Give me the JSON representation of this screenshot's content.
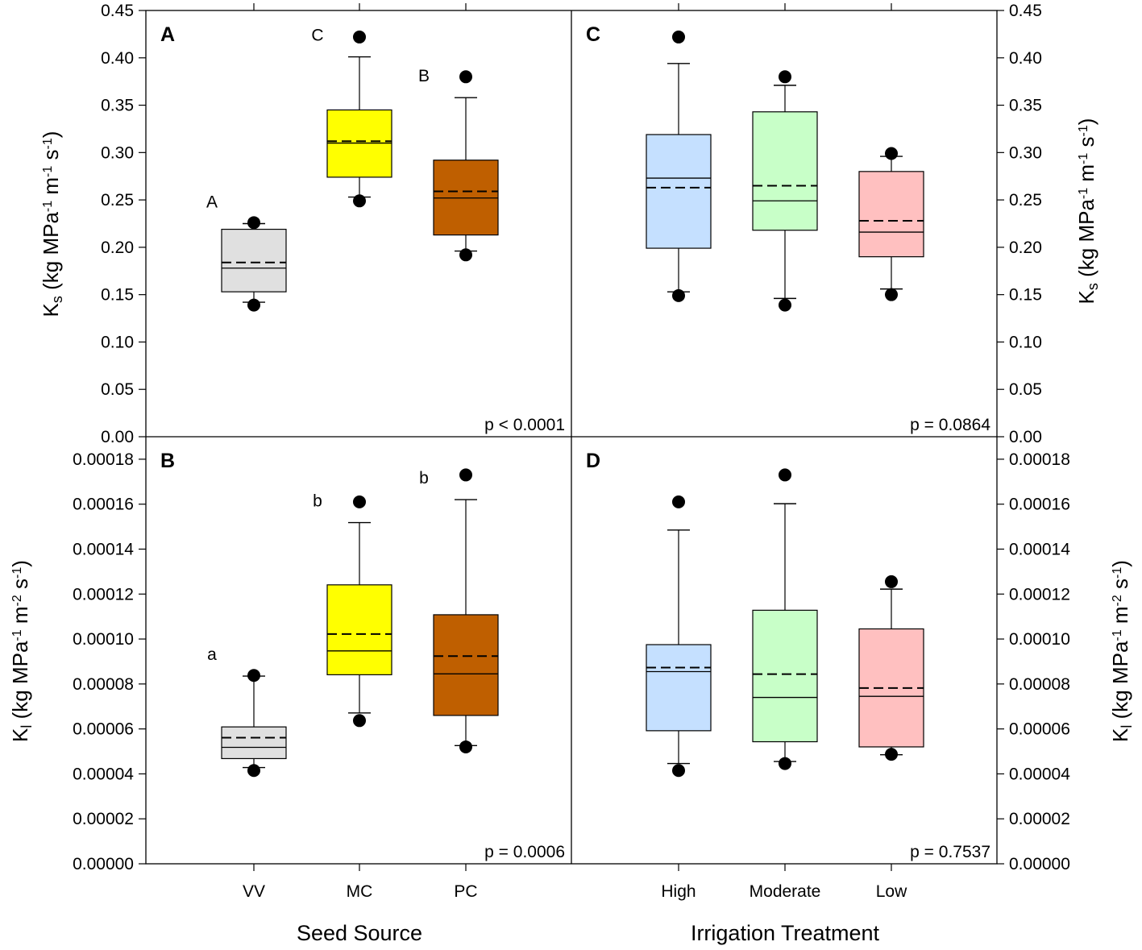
{
  "chart_data": [
    {
      "panel": "A",
      "type": "box",
      "metric": "Ks",
      "ylim": [
        0,
        0.45
      ],
      "yticks": [
        "0.00",
        "0.05",
        "0.10",
        "0.15",
        "0.20",
        "0.25",
        "0.30",
        "0.35",
        "0.40",
        "0.45"
      ],
      "p_value": "p < 0.0001",
      "groups": [
        {
          "name": "VV",
          "color": "#e0e0e0",
          "q1": 0.153,
          "median": 0.178,
          "mean": 0.184,
          "q3": 0.219,
          "wlo": 0.142,
          "whi": 0.225,
          "outliers": [
            0.139,
            0.226
          ],
          "sig": "A"
        },
        {
          "name": "MC",
          "color": "#ffff00",
          "q1": 0.274,
          "median": 0.31,
          "mean": 0.312,
          "q3": 0.345,
          "wlo": 0.253,
          "whi": 0.401,
          "outliers": [
            0.249,
            0.422
          ],
          "sig": "C"
        },
        {
          "name": "PC",
          "color": "#bf5f00",
          "q1": 0.213,
          "median": 0.252,
          "mean": 0.259,
          "q3": 0.292,
          "wlo": 0.196,
          "whi": 0.358,
          "outliers": [
            0.192,
            0.38
          ],
          "sig": "B"
        }
      ]
    },
    {
      "panel": "C",
      "type": "box",
      "metric": "Ks",
      "ylim": [
        0,
        0.45
      ],
      "yticks": [
        "0.00",
        "0.05",
        "0.10",
        "0.15",
        "0.20",
        "0.25",
        "0.30",
        "0.35",
        "0.40",
        "0.45"
      ],
      "p_value": "p = 0.0864",
      "groups": [
        {
          "name": "High",
          "color": "#c5e0ff",
          "q1": 0.199,
          "median": 0.273,
          "mean": 0.263,
          "q3": 0.319,
          "wlo": 0.153,
          "whi": 0.394,
          "outliers": [
            0.149,
            0.422
          ],
          "sig": ""
        },
        {
          "name": "Moderate",
          "color": "#c8ffc8",
          "q1": 0.218,
          "median": 0.249,
          "mean": 0.265,
          "q3": 0.343,
          "wlo": 0.146,
          "whi": 0.371,
          "outliers": [
            0.139,
            0.38
          ],
          "sig": ""
        },
        {
          "name": "Low",
          "color": "#ffc0c0",
          "q1": 0.19,
          "median": 0.216,
          "mean": 0.228,
          "q3": 0.28,
          "wlo": 0.156,
          "whi": 0.296,
          "outliers": [
            0.15,
            0.299
          ],
          "sig": ""
        }
      ]
    },
    {
      "panel": "B",
      "type": "box",
      "metric": "Kl",
      "ylim": [
        0,
        0.00019
      ],
      "yticks": [
        "0.00000",
        "0.00002",
        "0.00004",
        "0.00006",
        "0.00008",
        "0.00010",
        "0.00012",
        "0.00014",
        "0.00016",
        "0.00018"
      ],
      "p_value": "p = 0.0006",
      "groups": [
        {
          "name": "VV",
          "color": "#e0e0e0",
          "q1": 4.68e-05,
          "median": 5.18e-05,
          "mean": 5.61e-05,
          "q3": 6.09e-05,
          "wlo": 4.28e-05,
          "whi": 8.35e-05,
          "outliers": [
            4.15e-05,
            8.38e-05
          ],
          "sig": "a"
        },
        {
          "name": "MC",
          "color": "#ffff00",
          "q1": 8.41e-05,
          "median": 9.47e-05,
          "mean": 0.0001022,
          "q3": 0.0001241,
          "wlo": 6.71e-05,
          "whi": 0.0001518,
          "outliers": [
            6.37e-05,
            0.000161
          ],
          "sig": "b"
        },
        {
          "name": "PC",
          "color": "#bf5f00",
          "q1": 6.6e-05,
          "median": 8.45e-05,
          "mean": 9.24e-05,
          "q3": 0.0001108,
          "wlo": 5.26e-05,
          "whi": 0.000162,
          "outliers": [
            5.2e-05,
            0.000173
          ],
          "sig": "b"
        }
      ]
    },
    {
      "panel": "D",
      "type": "box",
      "metric": "Kl",
      "ylim": [
        0,
        0.00019
      ],
      "yticks": [
        "0.00000",
        "0.00002",
        "0.00004",
        "0.00006",
        "0.00008",
        "0.00010",
        "0.00012",
        "0.00014",
        "0.00016",
        "0.00018"
      ],
      "p_value": "p = 0.7537",
      "groups": [
        {
          "name": "High",
          "color": "#c5e0ff",
          "q1": 5.92e-05,
          "median": 8.55e-05,
          "mean": 8.73e-05,
          "q3": 9.75e-05,
          "wlo": 4.46e-05,
          "whi": 0.0001485,
          "outliers": [
            4.15e-05,
            0.000161
          ],
          "sig": ""
        },
        {
          "name": "Moderate",
          "color": "#c8ffc8",
          "q1": 5.43e-05,
          "median": 7.4e-05,
          "mean": 8.44e-05,
          "q3": 0.0001128,
          "wlo": 4.55e-05,
          "whi": 0.0001602,
          "outliers": [
            4.46e-05,
            0.000173
          ],
          "sig": ""
        },
        {
          "name": "Low",
          "color": "#ffc0c0",
          "q1": 5.2e-05,
          "median": 7.45e-05,
          "mean": 7.82e-05,
          "q3": 0.0001045,
          "wlo": 4.85e-05,
          "whi": 0.0001222,
          "outliers": [
            4.87e-05,
            0.0001255
          ],
          "sig": ""
        }
      ]
    }
  ],
  "labels": {
    "ks_main": "K",
    "ks_sub": "s",
    "ks_unit": " (kg MPa",
    "ks_exp1": "-1",
    "ks_m": " m",
    "ks_exp2": "-1",
    "ks_s": " s",
    "ks_exp3": "-1",
    "ks_close": ")",
    "kl_main": "K",
    "kl_sub": "l",
    "kl_unit": " (kg MPa",
    "kl_exp1": "-1",
    "kl_m": " m",
    "kl_exp2": "-2",
    "kl_s": " s",
    "kl_exp3": "-1",
    "kl_close": ")",
    "xtitle_left": "Seed Source",
    "xtitle_right": "Irrigation Treatment"
  }
}
